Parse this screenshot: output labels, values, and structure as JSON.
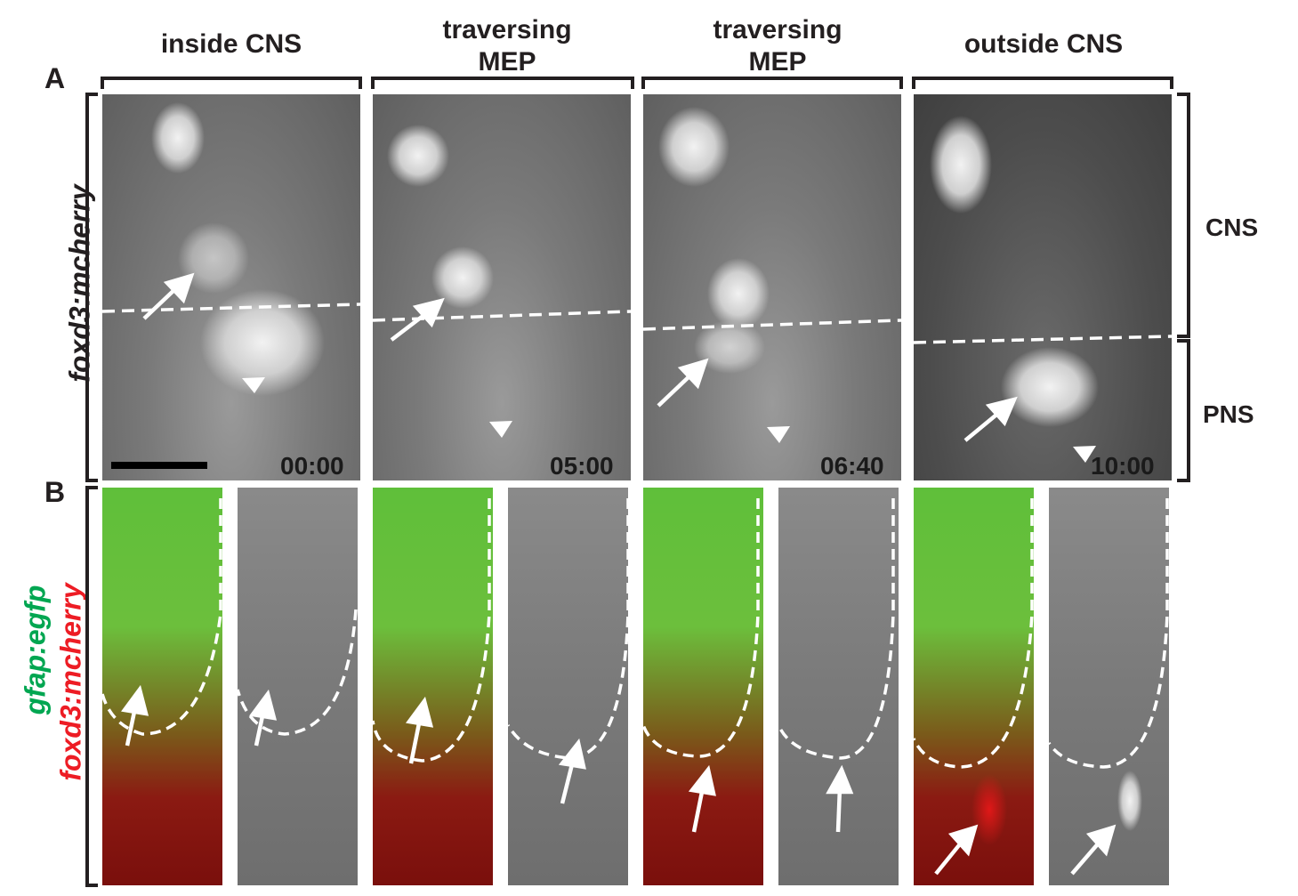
{
  "panel_labels": {
    "a": "A",
    "b": "B"
  },
  "columns": [
    {
      "line1": "",
      "line2": "inside CNS",
      "time": "00:00"
    },
    {
      "line1": "traversing",
      "line2": "MEP",
      "time": "05:00"
    },
    {
      "line1": "traversing",
      "line2": "MEP",
      "time": "06:40"
    },
    {
      "line1": "",
      "line2": "outside CNS",
      "time": "10:00"
    }
  ],
  "side_labels": {
    "cns": "CNS",
    "pns": "PNS"
  },
  "row_a_label": "foxd3:mcherry",
  "row_b_label": {
    "green": "gfap:egfp",
    "red": "foxd3:mcherry"
  },
  "colors": {
    "green_label": "#00a651",
    "red_label": "#ed1c24",
    "ink": "#231f20"
  },
  "icons": [
    "arrow-icon",
    "arrowhead-icon",
    "scale-bar"
  ]
}
